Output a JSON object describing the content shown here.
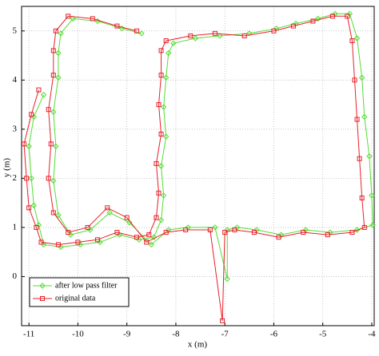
{
  "chart_data": {
    "type": "line",
    "x_label": "x (m)",
    "y_label": "y (m)",
    "xlim": [
      -11.15,
      -3.95
    ],
    "ylim": [
      -1,
      5.5
    ],
    "xticks": [
      -11,
      -10,
      -9,
      -8,
      -7,
      -6,
      -5,
      -4
    ],
    "yticks": [
      0,
      1,
      2,
      3,
      4,
      5
    ],
    "grid": true,
    "legend": "lower left",
    "series": [
      {
        "name": "after low pass filter",
        "color": "#55dd33",
        "marker": "diamond",
        "x": [
          -10.7,
          -10.9,
          -11.0,
          -10.95,
          -10.9,
          -10.8,
          -10.7,
          -10.35,
          -9.95,
          -9.55,
          -9.15,
          -8.75,
          -8.45,
          -8.3,
          -8.25,
          -8.3,
          -8.2,
          -8.25,
          -8.2,
          -8.15,
          -8.05,
          -7.6,
          -7.1,
          -6.5,
          -5.95,
          -5.55,
          -5.1,
          -4.75,
          -4.45,
          -4.3,
          -4.2,
          -4.15,
          -4.05,
          -4.0,
          -3.98,
          -4.3,
          -4.85,
          -5.35,
          -5.85,
          -6.35,
          -6.75,
          -6.95,
          -6.95,
          -7.2,
          -7.75,
          -8.15,
          -8.5,
          -8.95,
          -9.35,
          -9.75,
          -10.15,
          -10.4,
          -10.5,
          -10.45,
          -10.5,
          -10.4,
          -10.4,
          -10.35,
          -10.1,
          -9.6,
          -9.1,
          -8.7
        ],
        "values": [
          3.7,
          3.25,
          2.65,
          2.0,
          1.45,
          1.05,
          0.65,
          0.6,
          0.65,
          0.7,
          0.85,
          0.75,
          0.8,
          1.15,
          1.65,
          2.25,
          2.85,
          3.45,
          4.05,
          4.55,
          4.75,
          4.85,
          4.9,
          4.95,
          5.05,
          5.15,
          5.25,
          5.35,
          5.35,
          4.85,
          4.05,
          3.25,
          2.45,
          1.65,
          1.05,
          0.95,
          0.9,
          0.95,
          0.85,
          0.95,
          1.0,
          0.95,
          -0.05,
          1.0,
          1.0,
          0.95,
          0.65,
          1.1,
          1.3,
          0.95,
          0.85,
          1.25,
          1.95,
          2.65,
          3.35,
          4.05,
          4.55,
          4.95,
          5.25,
          5.2,
          5.05,
          4.95
        ]
      },
      {
        "name": "original data",
        "color": "#e8202a",
        "marker": "square",
        "x": [
          -10.8,
          -10.95,
          -11.1,
          -11.05,
          -11.0,
          -10.85,
          -10.75,
          -10.4,
          -10.0,
          -9.6,
          -9.2,
          -8.8,
          -8.55,
          -8.4,
          -8.35,
          -8.4,
          -8.3,
          -8.35,
          -8.3,
          -8.3,
          -8.2,
          -7.7,
          -7.2,
          -6.6,
          -6.0,
          -5.6,
          -5.2,
          -4.8,
          -4.5,
          -4.4,
          -4.35,
          -4.3,
          -4.25,
          -4.2,
          -4.15,
          -4.4,
          -4.9,
          -5.4,
          -5.9,
          -6.4,
          -6.8,
          -7.0,
          -7.05,
          -7.3,
          -7.8,
          -8.2,
          -8.6,
          -9.0,
          -9.4,
          -9.8,
          -10.2,
          -10.5,
          -10.6,
          -10.55,
          -10.6,
          -10.5,
          -10.5,
          -10.45,
          -10.2,
          -9.7,
          -9.2,
          -8.8
        ],
        "values": [
          3.8,
          3.3,
          2.7,
          2.0,
          1.4,
          1.0,
          0.7,
          0.65,
          0.7,
          0.75,
          0.9,
          0.8,
          0.85,
          1.2,
          1.7,
          2.3,
          2.9,
          3.5,
          4.1,
          4.6,
          4.8,
          4.9,
          4.95,
          4.9,
          5.0,
          5.1,
          5.2,
          5.3,
          5.3,
          4.8,
          4.0,
          3.2,
          2.4,
          1.6,
          1.0,
          0.9,
          0.85,
          0.9,
          0.8,
          0.9,
          0.95,
          0.9,
          -0.9,
          0.95,
          0.95,
          0.9,
          0.7,
          1.2,
          1.4,
          1.0,
          0.9,
          1.3,
          2.0,
          2.7,
          3.4,
          4.1,
          4.6,
          5.0,
          5.3,
          5.25,
          5.1,
          5.0
        ]
      }
    ]
  }
}
